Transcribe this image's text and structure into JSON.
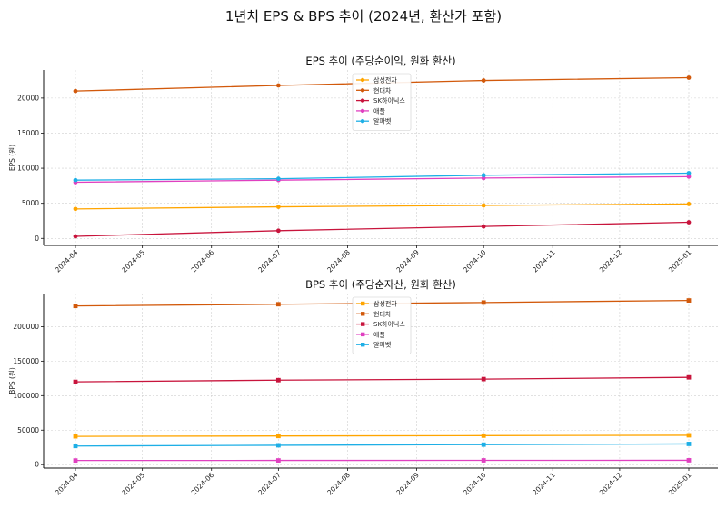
{
  "title": "1년치 EPS & BPS 추이 (2024년, 환산가 포함)",
  "x_ticks": [
    "2024-04",
    "2024-05",
    "2024-06",
    "2024-07",
    "2024-08",
    "2024-09",
    "2024-10",
    "2024-11",
    "2024-12",
    "2025-01"
  ],
  "chart_data": [
    {
      "type": "line",
      "title": "EPS 추이 (주당순이익, 원화 환산)",
      "ylabel": "EPS (원)",
      "x": [
        "2024-04-01",
        "2024-07-01",
        "2024-10-01",
        "2025-01-01"
      ],
      "ylim": [
        -1000,
        24000
      ],
      "yticks": [
        0,
        5000,
        10000,
        15000,
        20000
      ],
      "marker": "circle",
      "grid": true,
      "legend_position": "top-center",
      "series": [
        {
          "name": "삼성전자",
          "color": "#FFA500",
          "values": [
            4200,
            4500,
            4700,
            4900
          ]
        },
        {
          "name": "현대차",
          "color": "#D2590B",
          "values": [
            21000,
            21800,
            22500,
            22900
          ]
        },
        {
          "name": "SK하이닉스",
          "color": "#C8143C",
          "values": [
            300,
            1100,
            1700,
            2300
          ]
        },
        {
          "name": "애플",
          "color": "#E040C0",
          "values": [
            8000,
            8300,
            8600,
            8800
          ]
        },
        {
          "name": "알파벳",
          "color": "#1EAFE6",
          "values": [
            8300,
            8500,
            9000,
            9300
          ]
        }
      ]
    },
    {
      "type": "line",
      "title": "BPS 추이 (주당순자산, 원화 환산)",
      "ylabel": "BPS (원)",
      "x": [
        "2024-04-01",
        "2024-07-01",
        "2024-10-01",
        "2025-01-01"
      ],
      "ylim": [
        -5000,
        248000
      ],
      "yticks": [
        0,
        50000,
        100000,
        150000,
        200000
      ],
      "marker": "square",
      "grid": true,
      "legend_position": "top-center",
      "series": [
        {
          "name": "삼성전자",
          "color": "#FFA500",
          "values": [
            41000,
            41500,
            42000,
            42500
          ]
        },
        {
          "name": "현대차",
          "color": "#D2590B",
          "values": [
            230000,
            232500,
            235000,
            238000
          ]
        },
        {
          "name": "SK하이닉스",
          "color": "#C8143C",
          "values": [
            120000,
            122500,
            124000,
            126500
          ]
        },
        {
          "name": "애플",
          "color": "#E040C0",
          "values": [
            6000,
            6100,
            6200,
            6300
          ]
        },
        {
          "name": "알파벳",
          "color": "#1EAFE6",
          "values": [
            27000,
            28000,
            29000,
            30000
          ]
        }
      ]
    }
  ]
}
